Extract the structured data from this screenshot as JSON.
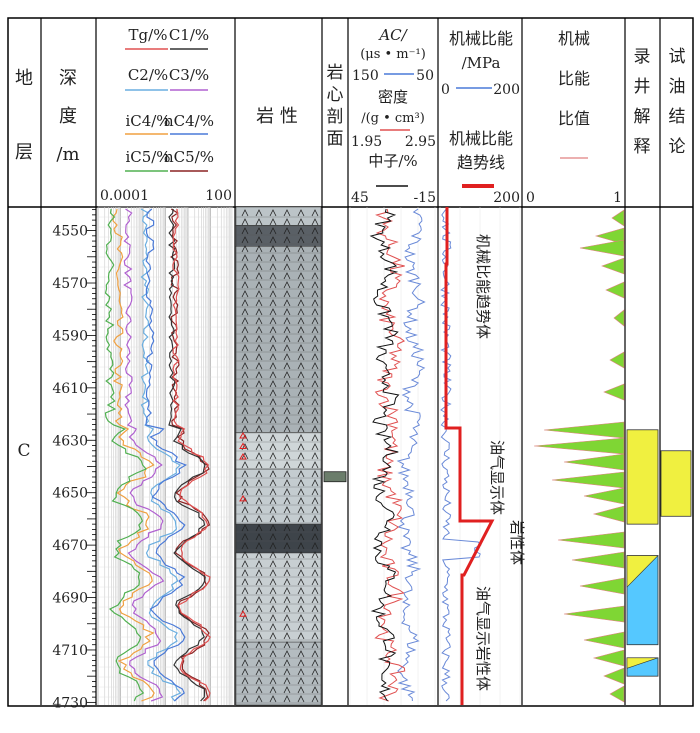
{
  "headers": {
    "col1": [
      "地",
      "层"
    ],
    "col2": [
      "深",
      "度",
      "/m"
    ],
    "col4": "岩 性",
    "col5": [
      "岩",
      "心",
      "剖",
      "面"
    ],
    "col8": [
      "机械",
      "比能",
      "比值"
    ],
    "col9": [
      "录",
      "井",
      "解",
      "释"
    ],
    "col10": [
      "试",
      "油",
      "结",
      "论"
    ]
  },
  "gas": {
    "row1": [
      "Tg/%",
      "C1/%"
    ],
    "row2": [
      "C2/%",
      "C3/%"
    ],
    "row3": [
      "iC4/%",
      "nC4/%"
    ],
    "row4": [
      "iC5/%",
      "nC5/%"
    ],
    "scale_min": "0.0001",
    "scale_max": "100",
    "colors": {
      "Tg": "#e05050",
      "C1": "#333333",
      "C2": "#6aaee0",
      "C3": "#b060d0",
      "iC4": "#f0a040",
      "nC4": "#4a7ad8",
      "iC5": "#50b050",
      "nC5": "#8b2323"
    }
  },
  "logs": {
    "ac_label": "AC/",
    "ac_unit": "(μs • m⁻¹)",
    "ac_min": "150",
    "ac_max": "50",
    "den_label": "密度",
    "den_unit": "/(g • cm³)",
    "den_min": "1.95",
    "den_max": "2.95",
    "neu_label": "中子/%",
    "neu_min": "45",
    "neu_max": "-15"
  },
  "mse": {
    "label1": "机械比能",
    "label1_unit": "/MPa",
    "min1": "0",
    "max1": "200",
    "label2": "机械比能",
    "label2_b": "趋势线",
    "min2": "200",
    "annotations": [
      "机械比能趋势体",
      "油气显示体",
      "岩性体",
      "油气显示岩性体"
    ]
  },
  "ratio": {
    "min": "0",
    "max": "1"
  },
  "stratum": "C",
  "depth_ticks": [
    "4550",
    "4570",
    "4590",
    "4610",
    "4630",
    "4650",
    "4670",
    "4690",
    "4710",
    "4730"
  ]
}
